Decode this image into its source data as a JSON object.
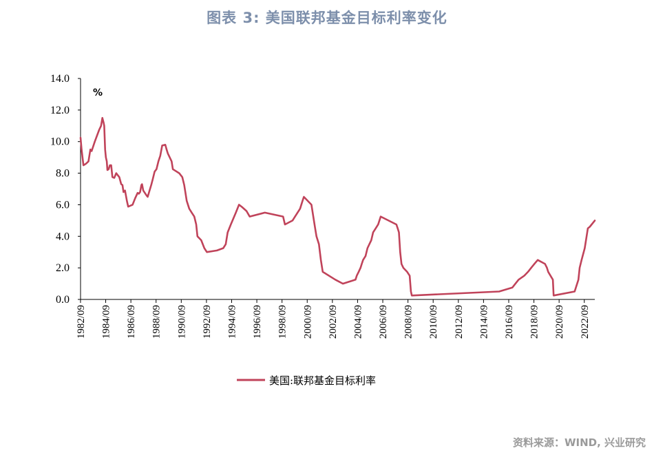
{
  "title": "图表 3:    美国联邦基金目标利率变化",
  "source": "资料来源：WIND, 兴业研究",
  "chart_data": {
    "type": "line",
    "unit_label": "%",
    "ylim": [
      0,
      14
    ],
    "yticks": [
      "0.0",
      "2.0",
      "4.0",
      "6.0",
      "8.0",
      "10.0",
      "12.0",
      "14.0"
    ],
    "xlim": [
      1982.67,
      2023.5
    ],
    "xticks": [
      "1982/09",
      "1984/09",
      "1986/09",
      "1988/09",
      "1990/09",
      "1992/09",
      "1994/09",
      "1996/09",
      "1998/09",
      "2000/09",
      "2002/09",
      "2004/09",
      "2006/09",
      "2008/09",
      "2010/09",
      "2012/09",
      "2014/09",
      "2016/09",
      "2018/09",
      "2020/09",
      "2022/09"
    ],
    "grid": false,
    "legend_position": "bottom-center",
    "series": [
      {
        "name": "美国:联邦基金目标利率",
        "color": "#c0435a",
        "points": [
          [
            1982.67,
            10.25
          ],
          [
            1982.75,
            9.5
          ],
          [
            1982.9,
            8.5
          ],
          [
            1983.1,
            8.6
          ],
          [
            1983.3,
            8.75
          ],
          [
            1983.45,
            9.5
          ],
          [
            1983.55,
            9.4
          ],
          [
            1983.8,
            10.0
          ],
          [
            1984.15,
            10.75
          ],
          [
            1984.3,
            11.0
          ],
          [
            1984.4,
            11.5
          ],
          [
            1984.5,
            11.2
          ],
          [
            1984.55,
            11.0
          ],
          [
            1984.62,
            9.5
          ],
          [
            1984.68,
            9.0
          ],
          [
            1984.75,
            8.75
          ],
          [
            1984.8,
            8.2
          ],
          [
            1984.9,
            8.25
          ],
          [
            1985.0,
            8.5
          ],
          [
            1985.1,
            8.5
          ],
          [
            1985.2,
            7.75
          ],
          [
            1985.35,
            7.7
          ],
          [
            1985.5,
            8.0
          ],
          [
            1985.6,
            7.9
          ],
          [
            1985.75,
            7.75
          ],
          [
            1985.9,
            7.3
          ],
          [
            1986.0,
            7.25
          ],
          [
            1986.08,
            6.8
          ],
          [
            1986.2,
            6.9
          ],
          [
            1986.35,
            6.25
          ],
          [
            1986.45,
            5.88
          ],
          [
            1986.8,
            6.0
          ],
          [
            1987.0,
            6.4
          ],
          [
            1987.2,
            6.75
          ],
          [
            1987.3,
            6.7
          ],
          [
            1987.4,
            6.8
          ],
          [
            1987.5,
            7.25
          ],
          [
            1987.55,
            7.3
          ],
          [
            1987.65,
            6.9
          ],
          [
            1987.9,
            6.6
          ],
          [
            1988.0,
            6.5
          ],
          [
            1988.3,
            7.3
          ],
          [
            1988.4,
            7.6
          ],
          [
            1988.55,
            8.1
          ],
          [
            1988.7,
            8.25
          ],
          [
            1988.85,
            8.75
          ],
          [
            1989.0,
            9.1
          ],
          [
            1989.15,
            9.75
          ],
          [
            1989.4,
            9.8
          ],
          [
            1989.5,
            9.5
          ],
          [
            1989.6,
            9.25
          ],
          [
            1989.75,
            9.0
          ],
          [
            1989.9,
            8.75
          ],
          [
            1990.0,
            8.25
          ],
          [
            1990.5,
            8.0
          ],
          [
            1990.75,
            7.75
          ],
          [
            1990.9,
            7.25
          ],
          [
            1991.0,
            6.75
          ],
          [
            1991.1,
            6.25
          ],
          [
            1991.3,
            5.75
          ],
          [
            1991.5,
            5.5
          ],
          [
            1991.7,
            5.25
          ],
          [
            1991.85,
            4.75
          ],
          [
            1991.95,
            4.0
          ],
          [
            1992.25,
            3.75
          ],
          [
            1992.5,
            3.25
          ],
          [
            1992.7,
            3.0
          ],
          [
            1993.5,
            3.1
          ],
          [
            1994.0,
            3.25
          ],
          [
            1994.2,
            3.5
          ],
          [
            1994.35,
            4.25
          ],
          [
            1994.6,
            4.75
          ],
          [
            1995.0,
            5.5
          ],
          [
            1995.25,
            6.0
          ],
          [
            1995.5,
            5.85
          ],
          [
            1995.85,
            5.6
          ],
          [
            1996.1,
            5.25
          ],
          [
            1997.3,
            5.5
          ],
          [
            1998.75,
            5.25
          ],
          [
            1998.9,
            4.75
          ],
          [
            1999.5,
            5.0
          ],
          [
            1999.7,
            5.25
          ],
          [
            2000.1,
            5.75
          ],
          [
            2000.3,
            6.25
          ],
          [
            2000.4,
            6.5
          ],
          [
            2001.0,
            6.0
          ],
          [
            2001.1,
            5.5
          ],
          [
            2001.2,
            5.0
          ],
          [
            2001.3,
            4.5
          ],
          [
            2001.4,
            4.0
          ],
          [
            2001.6,
            3.5
          ],
          [
            2001.75,
            2.5
          ],
          [
            2001.9,
            1.75
          ],
          [
            2002.9,
            1.25
          ],
          [
            2003.5,
            1.0
          ],
          [
            2004.5,
            1.25
          ],
          [
            2004.6,
            1.5
          ],
          [
            2004.75,
            1.75
          ],
          [
            2004.9,
            2.0
          ],
          [
            2005.0,
            2.25
          ],
          [
            2005.1,
            2.5
          ],
          [
            2005.3,
            2.75
          ],
          [
            2005.45,
            3.25
          ],
          [
            2005.6,
            3.5
          ],
          [
            2005.75,
            3.75
          ],
          [
            2005.9,
            4.25
          ],
          [
            2006.1,
            4.5
          ],
          [
            2006.3,
            4.75
          ],
          [
            2006.5,
            5.25
          ],
          [
            2007.75,
            4.75
          ],
          [
            2007.85,
            4.5
          ],
          [
            2007.95,
            4.25
          ],
          [
            2008.05,
            3.0
          ],
          [
            2008.15,
            2.25
          ],
          [
            2008.3,
            2.0
          ],
          [
            2008.6,
            1.75
          ],
          [
            2008.8,
            1.5
          ],
          [
            2008.9,
            0.5
          ],
          [
            2008.97,
            0.25
          ],
          [
            2015.9,
            0.5
          ],
          [
            2016.95,
            0.75
          ],
          [
            2017.2,
            1.0
          ],
          [
            2017.45,
            1.25
          ],
          [
            2017.9,
            1.5
          ],
          [
            2018.2,
            1.75
          ],
          [
            2018.45,
            2.0
          ],
          [
            2018.7,
            2.25
          ],
          [
            2018.97,
            2.5
          ],
          [
            2019.55,
            2.25
          ],
          [
            2019.7,
            2.0
          ],
          [
            2019.8,
            1.75
          ],
          [
            2020.17,
            1.25
          ],
          [
            2020.23,
            0.25
          ],
          [
            2021.9,
            0.5
          ],
          [
            2022.2,
            1.25
          ],
          [
            2022.3,
            2.0
          ],
          [
            2022.45,
            2.5
          ],
          [
            2022.7,
            3.25
          ],
          [
            2022.85,
            4.0
          ],
          [
            2022.95,
            4.5
          ],
          [
            2023.1,
            4.6
          ],
          [
            2023.5,
            5.0
          ]
        ]
      }
    ]
  }
}
